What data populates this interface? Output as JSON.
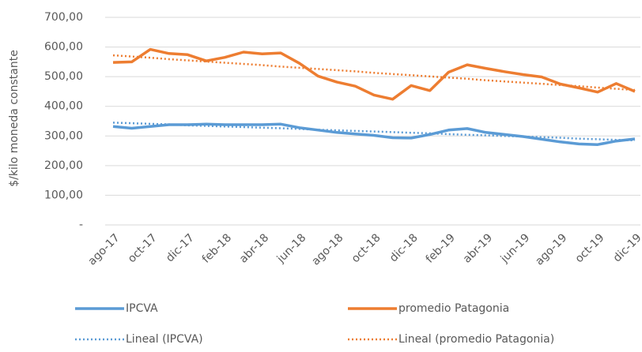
{
  "chart_data": {
    "type": "line",
    "y_label": "$/kilo moneda constante",
    "categories": [
      "ago-17",
      null,
      "oct-17",
      null,
      "dic-17",
      null,
      "feb-18",
      null,
      "abr-18",
      null,
      "jun-18",
      null,
      "ago-18",
      null,
      "oct-18",
      null,
      "dic-18",
      null,
      "feb-19",
      null,
      "abr-19",
      null,
      "jun-19",
      null,
      "ago-19",
      null,
      "oct-19",
      null,
      "dic-19"
    ],
    "series": [
      {
        "name": "IPCVA",
        "color": "#5b9bd5",
        "style": "solid",
        "values": [
          332,
          326,
          332,
          338,
          338,
          340,
          338,
          338,
          338,
          340,
          328,
          320,
          312,
          307,
          302,
          294,
          293,
          305,
          320,
          325,
          312,
          305,
          298,
          289,
          280,
          273,
          271,
          283,
          290
        ]
      },
      {
        "name": "promedio Patagonia",
        "color": "#ed7d31",
        "style": "solid",
        "values": [
          548,
          550,
          592,
          578,
          574,
          553,
          565,
          583,
          577,
          580,
          545,
          502,
          482,
          468,
          438,
          424,
          470,
          453,
          515,
          540,
          528,
          517,
          507,
          499,
          475,
          462,
          448,
          477,
          450
        ]
      },
      {
        "name": "Lineal (IPCVA)",
        "color": "#5b9bd5",
        "style": "dotted",
        "values": [
          345,
          343,
          341,
          339,
          336,
          334,
          332,
          330,
          328,
          326,
          324,
          321,
          319,
          317,
          315,
          313,
          311,
          309,
          306,
          304,
          302,
          300,
          298,
          296,
          294,
          291,
          289,
          287,
          285
        ]
      },
      {
        "name": "Lineal (promedio Patagonia)",
        "color": "#ed7d31",
        "style": "dotted",
        "values": [
          572,
          568,
          564,
          559,
          555,
          551,
          547,
          543,
          539,
          534,
          530,
          526,
          522,
          518,
          513,
          509,
          505,
          501,
          497,
          493,
          488,
          484,
          480,
          476,
          472,
          468,
          463,
          459,
          455
        ]
      }
    ],
    "ylim": [
      0,
      700
    ],
    "yticks": [
      {
        "value": 0,
        "label": "-"
      },
      {
        "value": 100,
        "label": "100,00"
      },
      {
        "value": 200,
        "label": "200,00"
      },
      {
        "value": 300,
        "label": "300,00"
      },
      {
        "value": 400,
        "label": "400,00"
      },
      {
        "value": 500,
        "label": "500,00"
      },
      {
        "value": 600,
        "label": "600,00"
      },
      {
        "value": 700,
        "label": "700,00"
      }
    ],
    "grid": true,
    "legend": "bottom"
  }
}
